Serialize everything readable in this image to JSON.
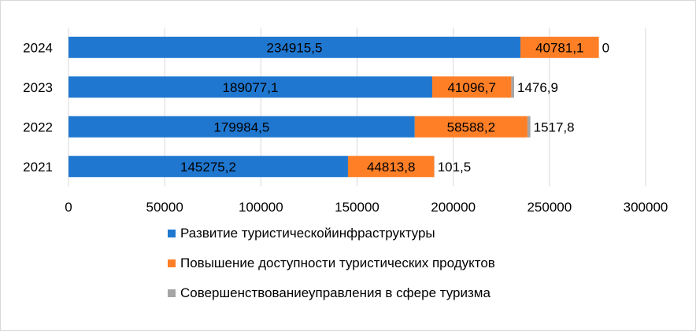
{
  "chart_data": {
    "type": "bar",
    "orientation": "horizontal",
    "stacked": true,
    "categories": [
      "2024",
      "2023",
      "2022",
      "2021"
    ],
    "series": [
      {
        "name": "Развитие туристическойинфраструктуры",
        "color": "#1f77d0",
        "values": [
          234915.5,
          189077.1,
          179984.5,
          145275.2
        ],
        "labels": [
          "234915,5",
          "189077,1",
          "179984,5",
          "145275,2"
        ]
      },
      {
        "name": "Повышение доступности туристических продуктов",
        "color": "#ff7f27",
        "values": [
          40781.1,
          41096.7,
          58588.2,
          44813.8
        ],
        "labels": [
          "40781,1",
          "41096,7",
          "58588,2",
          "44813,8"
        ]
      },
      {
        "name": "Совершенствованиеуправления в сфере туризма",
        "color": "#a5a5a5",
        "values": [
          0,
          1476.9,
          1517.8,
          101.5
        ],
        "labels": [
          "0",
          "1476,9",
          "1517,8",
          "101,5"
        ]
      }
    ],
    "x_ticks": [
      0,
      50000,
      100000,
      150000,
      200000,
      250000,
      300000
    ],
    "x_tick_labels": [
      "0",
      "50000",
      "100000",
      "150000",
      "200000",
      "250000",
      "300000"
    ],
    "xlim": [
      0,
      300000
    ],
    "grid": "vertical",
    "legend": "bottom"
  }
}
